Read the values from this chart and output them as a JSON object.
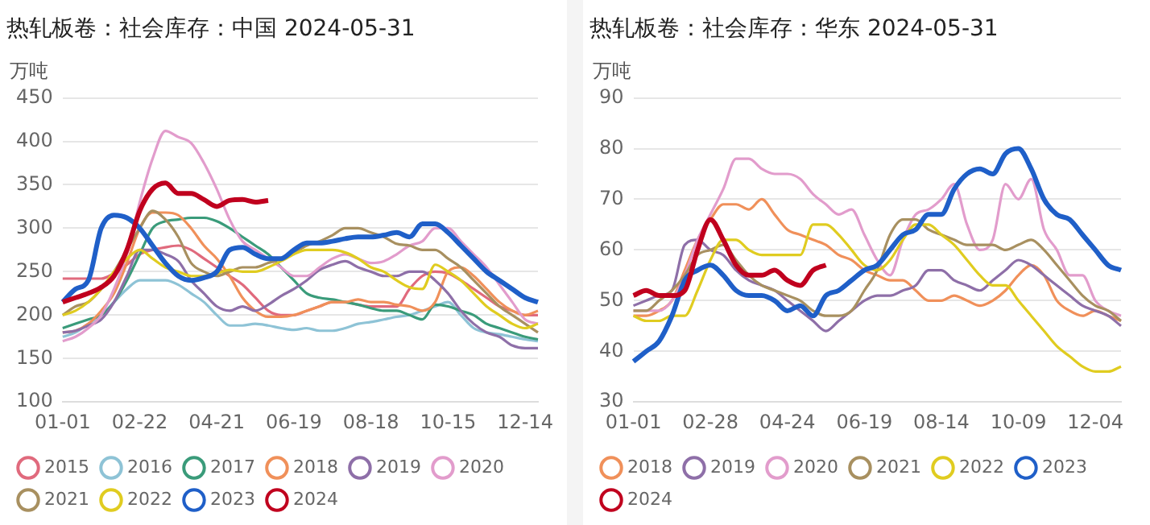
{
  "chart_data": [
    {
      "type": "line",
      "title": "热轧板卷：社会库存：中国 2024-05-31",
      "ylabel": "万吨",
      "grid": "y",
      "legend": "bottom",
      "marker": "none",
      "line_style": "solid",
      "categories": [
        "01-01",
        null,
        null,
        null,
        null,
        null,
        "02-22",
        null,
        null,
        null,
        null,
        null,
        "04-21",
        null,
        null,
        null,
        null,
        null,
        "06-19",
        null,
        null,
        null,
        null,
        null,
        "08-18",
        null,
        null,
        null,
        null,
        null,
        "10-15",
        null,
        null,
        null,
        null,
        null,
        "12-14",
        null
      ],
      "ylim": [
        100,
        450
      ],
      "yticks": [
        100,
        150,
        200,
        250,
        300,
        350,
        400,
        450
      ],
      "series": [
        {
          "name": "2015",
          "color": "#e06a7d",
          "values": [
            242,
            242,
            242,
            242,
            248,
            258,
            270,
            275,
            278,
            280,
            275,
            265,
            255,
            245,
            235,
            220,
            205,
            200,
            200,
            205,
            210,
            215,
            215,
            212,
            210,
            210,
            210,
            230,
            245,
            250,
            248,
            240,
            230,
            220,
            210,
            205,
            200,
            200
          ]
        },
        {
          "name": "2016",
          "color": "#8ec3d6",
          "values": [
            175,
            180,
            190,
            200,
            215,
            230,
            240,
            240,
            240,
            235,
            225,
            215,
            200,
            188,
            188,
            190,
            188,
            185,
            183,
            185,
            182,
            182,
            185,
            190,
            192,
            195,
            198,
            200,
            205,
            210,
            215,
            200,
            185,
            180,
            178,
            175,
            172,
            170
          ]
        },
        {
          "name": "2017",
          "color": "#3a9b7a",
          "values": [
            185,
            190,
            195,
            200,
            215,
            240,
            270,
            300,
            308,
            310,
            312,
            312,
            308,
            300,
            290,
            280,
            270,
            255,
            240,
            225,
            220,
            218,
            215,
            212,
            208,
            205,
            205,
            200,
            195,
            212,
            210,
            205,
            200,
            190,
            185,
            180,
            175,
            172
          ]
        },
        {
          "name": "2018",
          "color": "#f0905a",
          "values": [
            180,
            182,
            190,
            205,
            225,
            260,
            300,
            318,
            318,
            315,
            300,
            280,
            265,
            245,
            220,
            205,
            198,
            198,
            200,
            205,
            210,
            215,
            215,
            218,
            215,
            215,
            212,
            210,
            205,
            215,
            250,
            255,
            245,
            230,
            215,
            205,
            200,
            205
          ]
        },
        {
          "name": "2019",
          "color": "#8e6fa8",
          "values": [
            180,
            182,
            188,
            195,
            215,
            245,
            275,
            275,
            270,
            262,
            240,
            225,
            210,
            205,
            210,
            205,
            212,
            222,
            230,
            240,
            252,
            258,
            262,
            255,
            250,
            245,
            245,
            250,
            250,
            240,
            225,
            205,
            190,
            180,
            175,
            165,
            162,
            162
          ]
        },
        {
          "name": "2020",
          "color": "#e29ccc",
          "values": [
            170,
            175,
            185,
            200,
            230,
            270,
            330,
            380,
            412,
            405,
            398,
            375,
            345,
            310,
            285,
            275,
            265,
            255,
            245,
            245,
            255,
            265,
            270,
            265,
            260,
            262,
            270,
            280,
            285,
            300,
            300,
            285,
            270,
            255,
            235,
            215,
            195,
            190
          ]
        },
        {
          "name": "2021",
          "color": "#a89060",
          "values": [
            200,
            210,
            215,
            230,
            250,
            275,
            300,
            320,
            310,
            290,
            260,
            250,
            245,
            250,
            255,
            255,
            260,
            265,
            272,
            280,
            285,
            292,
            300,
            300,
            295,
            290,
            282,
            280,
            275,
            275,
            265,
            255,
            240,
            225,
            210,
            200,
            190,
            180
          ]
        },
        {
          "name": "2022",
          "color": "#e0cc20",
          "values": [
            200,
            205,
            215,
            230,
            250,
            265,
            275,
            265,
            255,
            250,
            245,
            245,
            248,
            252,
            250,
            250,
            255,
            262,
            270,
            275,
            275,
            275,
            272,
            265,
            255,
            250,
            240,
            232,
            230,
            258,
            250,
            240,
            225,
            210,
            200,
            190,
            185,
            190
          ]
        },
        {
          "name": "2023",
          "color": "#1f5fc8",
          "values": [
            215,
            230,
            240,
            300,
            315,
            312,
            300,
            280,
            260,
            245,
            240,
            243,
            250,
            275,
            278,
            270,
            265,
            265,
            275,
            283,
            283,
            285,
            288,
            290,
            290,
            292,
            295,
            290,
            305,
            305,
            295,
            280,
            265,
            250,
            240,
            230,
            220,
            215
          ]
        },
        {
          "name": "2024",
          "color": "#c0001e",
          "values": [
            215,
            220,
            225,
            232,
            245,
            275,
            320,
            345,
            352,
            340,
            340,
            333,
            325,
            332,
            333,
            330,
            332,
            null,
            null,
            null,
            null,
            null,
            null,
            null,
            null,
            null,
            null,
            null,
            null,
            null,
            null,
            null,
            null,
            null,
            null,
            null,
            null,
            null
          ]
        }
      ]
    },
    {
      "type": "line",
      "title": "热轧板卷：社会库存：华东 2024-05-31",
      "ylabel": "万吨",
      "grid": "y",
      "legend": "bottom",
      "marker": "none",
      "line_style": "solid",
      "categories": [
        "01-01",
        null,
        null,
        null,
        null,
        null,
        "02-28",
        null,
        null,
        null,
        null,
        null,
        "04-24",
        null,
        null,
        null,
        null,
        null,
        "06-19",
        null,
        null,
        null,
        null,
        null,
        "08-14",
        null,
        null,
        null,
        null,
        null,
        "10-09",
        null,
        null,
        null,
        null,
        null,
        "12-04",
        null,
        null
      ],
      "ylim": [
        30,
        90
      ],
      "yticks": [
        30,
        40,
        50,
        60,
        70,
        80,
        90
      ],
      "series": [
        {
          "name": "2018",
          "color": "#f0905a",
          "values": [
            47,
            47,
            48,
            50,
            56,
            62,
            66,
            69,
            69,
            68,
            70,
            67,
            64,
            63,
            62,
            61,
            59,
            58,
            56,
            55,
            54,
            54,
            52,
            50,
            50,
            51,
            50,
            49,
            50,
            52,
            55,
            57,
            55,
            50,
            48,
            47,
            48,
            47,
            46
          ]
        },
        {
          "name": "2019",
          "color": "#8e6fa8",
          "values": [
            49,
            50,
            51,
            52,
            61,
            62,
            60,
            59,
            56,
            54,
            53,
            52,
            50,
            48,
            46,
            44,
            46,
            48,
            50,
            51,
            51,
            52,
            53,
            56,
            56,
            54,
            53,
            52,
            54,
            56,
            58,
            57,
            55,
            53,
            51,
            49,
            48,
            47,
            45
          ]
        },
        {
          "name": "2020",
          "color": "#e29ccc",
          "values": [
            48,
            48,
            48,
            50,
            55,
            62,
            67,
            72,
            78,
            78,
            76,
            75,
            75,
            74,
            71,
            69,
            67,
            68,
            63,
            58,
            55,
            62,
            67,
            68,
            70,
            73,
            65,
            60,
            62,
            73,
            70,
            74,
            64,
            60,
            55,
            55,
            50,
            48,
            47
          ]
        },
        {
          "name": "2021",
          "color": "#a89060",
          "values": [
            48,
            48,
            50,
            52,
            55,
            59,
            60,
            61,
            58,
            55,
            53,
            52,
            51,
            50,
            48,
            47,
            47,
            48,
            52,
            56,
            63,
            66,
            66,
            64,
            63,
            62,
            61,
            61,
            61,
            60,
            61,
            62,
            60,
            57,
            54,
            51,
            49,
            48,
            46
          ]
        },
        {
          "name": "2022",
          "color": "#e0cc20",
          "values": [
            47,
            46,
            46,
            47,
            47,
            52,
            58,
            62,
            62,
            60,
            59,
            59,
            59,
            59,
            65,
            65,
            63,
            60,
            57,
            56,
            58,
            62,
            65,
            65,
            63,
            61,
            58,
            55,
            53,
            53,
            50,
            47,
            44,
            41,
            39,
            37,
            36,
            36,
            37
          ]
        },
        {
          "name": "2023",
          "color": "#1f5fc8",
          "values": [
            38,
            40,
            42,
            47,
            54,
            56,
            57,
            55,
            52,
            51,
            51,
            50,
            48,
            49,
            47,
            51,
            52,
            54,
            56,
            57,
            60,
            63,
            64,
            67,
            67,
            72,
            75,
            76,
            75,
            79,
            80,
            76,
            70,
            67,
            66,
            63,
            60,
            57,
            56
          ]
        },
        {
          "name": "2024",
          "color": "#c0001e",
          "values": [
            51,
            52,
            51,
            51,
            52,
            60,
            66,
            62,
            57,
            55,
            55,
            56,
            54,
            53,
            56,
            57,
            null,
            null,
            null,
            null,
            null,
            null,
            null,
            null,
            null,
            null,
            null,
            null,
            null,
            null,
            null,
            null,
            null,
            null,
            null,
            null,
            null,
            null,
            null
          ]
        }
      ]
    }
  ]
}
